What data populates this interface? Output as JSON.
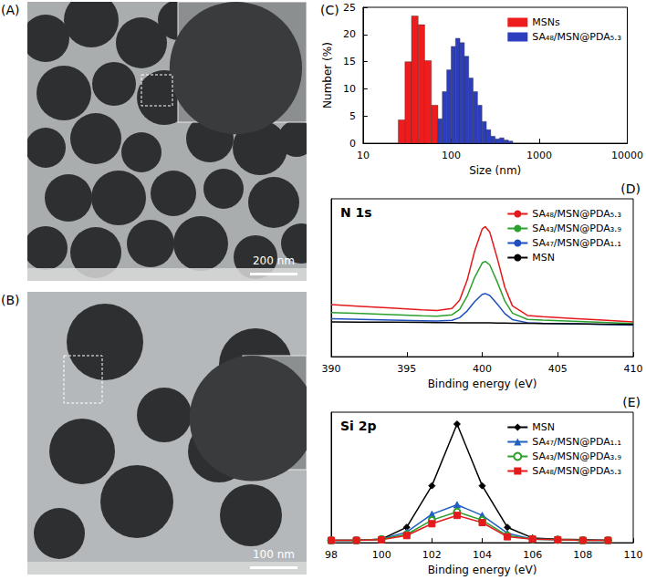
{
  "images": [
    {
      "panel": "(A)",
      "scale_bar": "200 nm"
    },
    {
      "panel": "(B)",
      "scale_bar": "100 nm"
    }
  ],
  "chart_data": [
    {
      "panel": "(C)",
      "type": "histogram",
      "x_label": "Size (nm)",
      "y_label": "Number (%)",
      "log": "x",
      "xlim": [
        10,
        10000
      ],
      "xticks": [
        10,
        100,
        1000,
        10000
      ],
      "ylim": [
        0,
        25
      ],
      "yticks": [
        0,
        5,
        10,
        15,
        20,
        25
      ],
      "grid": false,
      "legend": "upper right",
      "series": [
        {
          "name": "MSNs",
          "color": "#ee1c1c",
          "bins": [
            25.1,
            29.9,
            35.5,
            42.2,
            50.1,
            59.6,
            70.8
          ],
          "values": [
            4.3,
            15.0,
            23.4,
            21.8,
            15.2,
            7.0
          ]
        },
        {
          "name": "SA₄₈/MSN@PDA₅.₃",
          "color": "#2c3dbe",
          "bins": [
            70.8,
            79.4,
            89.1,
            100,
            112.2,
            125.9,
            141.3,
            158.5,
            177.8,
            199.5,
            223.9,
            251.2,
            281.8,
            316.2,
            354.8,
            398.1,
            446.7,
            501.2
          ],
          "values": [
            4.5,
            9.5,
            13.5,
            17.8,
            19.3,
            18.5,
            16,
            12,
            9.5,
            7,
            4,
            2.5,
            1.3,
            0.8,
            1.0,
            0.6,
            0.4
          ]
        }
      ]
    },
    {
      "panel": "(D)",
      "type": "line",
      "annotation": "N 1s",
      "x_label": "Binding energy (eV)",
      "xlim": [
        390,
        410
      ],
      "xticks": [
        390,
        395,
        400,
        405,
        410
      ],
      "ylim": [
        0,
        100
      ],
      "yticks": [],
      "tick_labels": "x",
      "grid": false,
      "legend": "upper right",
      "marker": "none",
      "line_style": "solid",
      "x": [
        390,
        392,
        394,
        396,
        397,
        398,
        398.5,
        399,
        399.5,
        400,
        400.2,
        400.5,
        401,
        401.5,
        402,
        403,
        404,
        406,
        408,
        410
      ],
      "series": [
        {
          "name": "SA₄₈/MSN@PDA₅.₃",
          "color": "#e31a1c",
          "values": [
            33,
            31.9,
            30.8,
            29.7,
            29.3,
            30.5,
            35.7,
            48.4,
            66.9,
            80.9,
            82.4,
            78.9,
            62.2,
            43.8,
            32.2,
            26.1,
            25.3,
            24.2,
            23.1,
            22
          ]
        },
        {
          "name": "SA₄₃/MSN@PDA₃.₉",
          "color": "#2ca02c",
          "values": [
            28,
            27.3,
            26.6,
            25.9,
            25.6,
            26.5,
            29.9,
            38.2,
            50.3,
            59.4,
            60.4,
            58.1,
            47.2,
            35.2,
            27.6,
            23.6,
            23.1,
            22.4,
            21.7,
            21
          ]
        },
        {
          "name": "SA₄₇/MSN@PDA₁.₁",
          "color": "#1f4fbf",
          "values": [
            24,
            23.6,
            23.2,
            22.8,
            22.6,
            23.0,
            24.7,
            28.9,
            34.9,
            39.5,
            39.96,
            38.8,
            33.3,
            27.3,
            23.5,
            21.5,
            21.2,
            20.8,
            20.4,
            20
          ]
        },
        {
          "name": "MSN",
          "color": "#000000",
          "values": [
            22,
            21.9,
            21.8,
            21.7,
            21.6,
            21.6,
            21.5,
            21.5,
            21.5,
            21.4,
            21.4,
            21.4,
            21.3,
            21.3,
            21.2,
            21.1,
            21,
            20.8,
            20.6,
            20.4
          ]
        }
      ]
    },
    {
      "panel": "(E)",
      "type": "line",
      "annotation": "Si 2p",
      "x_label": "Binding energy (eV)",
      "xlim": [
        98,
        110
      ],
      "xticks": [
        98,
        100,
        102,
        104,
        106,
        108,
        110
      ],
      "ylim": [
        0,
        110
      ],
      "yticks": [],
      "tick_labels": "x",
      "grid": false,
      "legend": "upper right",
      "line_style": "solid",
      "x": [
        98,
        99,
        100,
        101,
        102,
        103,
        104,
        105,
        106,
        107,
        108,
        109
      ],
      "series": [
        {
          "name": "MSN",
          "color": "#000000",
          "marker": "diamond",
          "values": [
            2,
            2,
            3,
            13,
            48,
            100,
            48,
            13,
            4,
            3,
            2.5,
            2
          ]
        },
        {
          "name": "SA₄₇/MSN@PDA₁.₁",
          "color": "#1f5fc0",
          "marker": "triangle",
          "values": [
            2,
            2,
            3,
            9,
            24,
            32,
            23,
            8,
            3,
            2.5,
            2,
            2
          ]
        },
        {
          "name": "SA₄₃/MSN@PDA₃.₉",
          "color": "#2ca02c",
          "marker": "emptyCircle",
          "values": [
            2,
            2,
            3,
            7,
            19,
            26,
            19,
            6,
            3,
            2.5,
            2,
            2
          ]
        },
        {
          "name": "SA₄₈/MSN@PDA₅.₃",
          "color": "#e41a1c",
          "marker": "rect",
          "values": [
            2,
            2,
            2.5,
            6,
            16,
            23,
            17,
            5,
            3,
            2.5,
            2,
            2
          ]
        }
      ]
    }
  ]
}
